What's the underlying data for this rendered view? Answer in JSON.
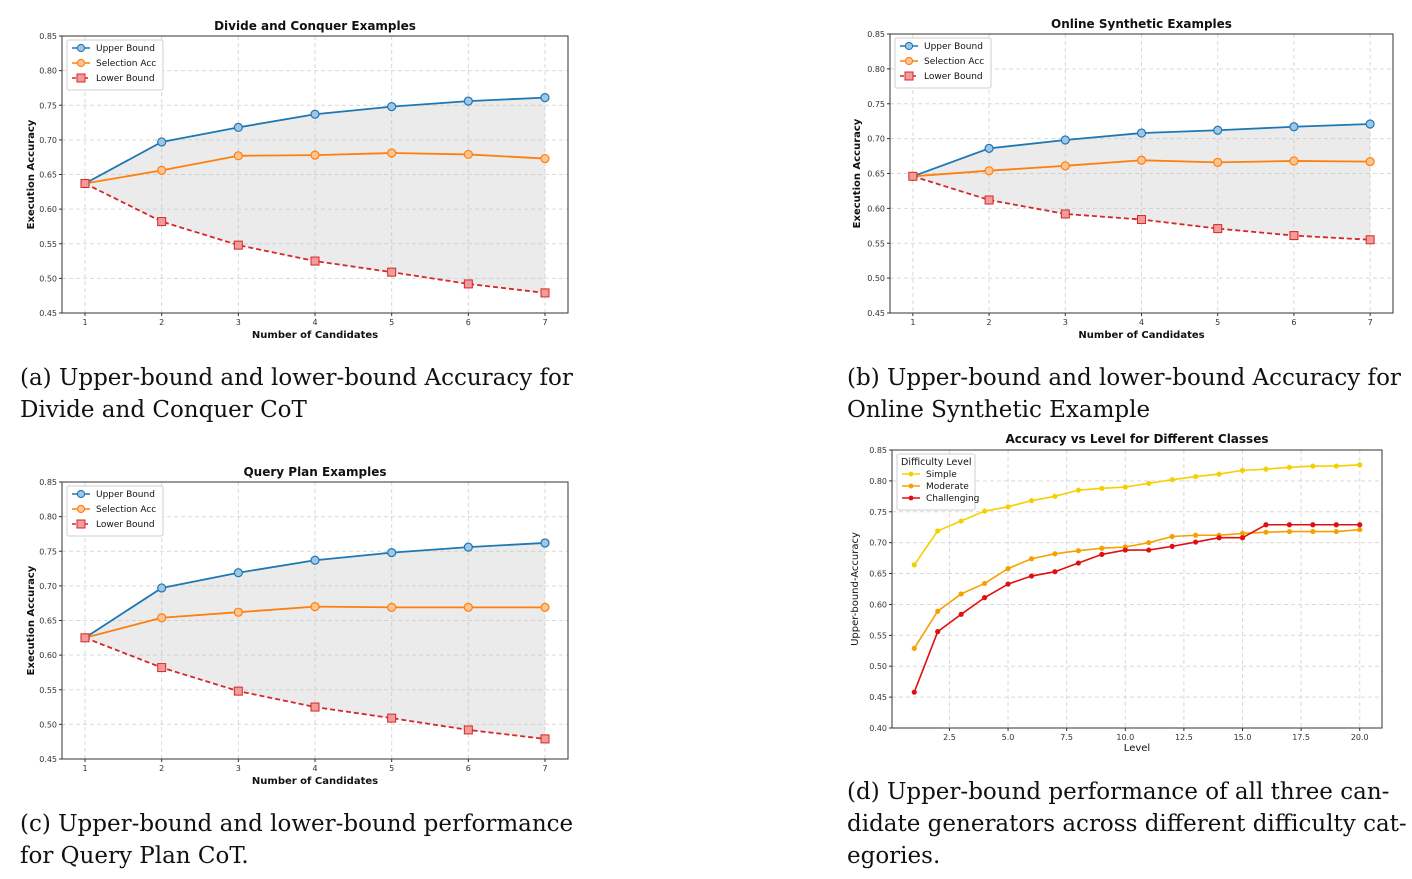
{
  "chart_data": [
    {
      "type": "line",
      "title": "Divide and Conquer Examples",
      "xlabel": "Number of Candidates",
      "ylabel": "Execution Accuracy",
      "x": [
        1,
        2,
        3,
        4,
        5,
        6,
        7
      ],
      "xlim": [
        0.7,
        7.3
      ],
      "ylim": [
        0.45,
        0.85
      ],
      "xticks": [
        1,
        2,
        3,
        4,
        5,
        6,
        7
      ],
      "yticks": [
        "0.45",
        "0.50",
        "0.55",
        "0.60",
        "0.65",
        "0.70",
        "0.75",
        "0.80",
        "0.85"
      ],
      "grid": true,
      "legend": "top-left",
      "shade_between": [
        "Upper Bound",
        "Lower Bound"
      ],
      "series": [
        {
          "name": "Upper Bound",
          "color": "#1f77b4",
          "marker": "circle",
          "dash": "solid",
          "values": [
            0.637,
            0.697,
            0.718,
            0.737,
            0.748,
            0.756,
            0.761
          ]
        },
        {
          "name": "Selection Acc",
          "color": "#ff7f0e",
          "marker": "circle",
          "dash": "solid",
          "values": [
            0.637,
            0.656,
            0.677,
            0.678,
            0.681,
            0.679,
            0.673
          ]
        },
        {
          "name": "Lower Bound",
          "color": "#d62728",
          "marker": "square",
          "dash": "dashed",
          "values": [
            0.637,
            0.582,
            0.548,
            0.525,
            0.509,
            0.492,
            0.479
          ]
        }
      ]
    },
    {
      "type": "line",
      "title": "Online Synthetic Examples",
      "xlabel": "Number of Candidates",
      "ylabel": "Execution Accuracy",
      "x": [
        1,
        2,
        3,
        4,
        5,
        6,
        7
      ],
      "xlim": [
        0.7,
        7.3
      ],
      "ylim": [
        0.45,
        0.85
      ],
      "xticks": [
        1,
        2,
        3,
        4,
        5,
        6,
        7
      ],
      "yticks": [
        "0.45",
        "0.50",
        "0.55",
        "0.60",
        "0.65",
        "0.70",
        "0.75",
        "0.80",
        "0.85"
      ],
      "grid": true,
      "legend": "top-left",
      "shade_between": [
        "Upper Bound",
        "Lower Bound"
      ],
      "series": [
        {
          "name": "Upper Bound",
          "color": "#1f77b4",
          "marker": "circle",
          "dash": "solid",
          "values": [
            0.646,
            0.686,
            0.698,
            0.708,
            0.712,
            0.717,
            0.721
          ]
        },
        {
          "name": "Selection Acc",
          "color": "#ff7f0e",
          "marker": "circle",
          "dash": "solid",
          "values": [
            0.646,
            0.654,
            0.661,
            0.669,
            0.666,
            0.668,
            0.667
          ]
        },
        {
          "name": "Lower Bound",
          "color": "#d62728",
          "marker": "square",
          "dash": "dashed",
          "values": [
            0.646,
            0.612,
            0.592,
            0.584,
            0.571,
            0.561,
            0.555
          ]
        }
      ]
    },
    {
      "type": "line",
      "title": "Query Plan Examples",
      "xlabel": "Number of Candidates",
      "ylabel": "Execution Accuracy",
      "x": [
        1,
        2,
        3,
        4,
        5,
        6,
        7
      ],
      "xlim": [
        0.7,
        7.3
      ],
      "ylim": [
        0.45,
        0.85
      ],
      "xticks": [
        1,
        2,
        3,
        4,
        5,
        6,
        7
      ],
      "yticks": [
        "0.45",
        "0.50",
        "0.55",
        "0.60",
        "0.65",
        "0.70",
        "0.75",
        "0.80",
        "0.85"
      ],
      "grid": true,
      "legend": "top-left",
      "shade_between": [
        "Upper Bound",
        "Lower Bound"
      ],
      "series": [
        {
          "name": "Upper Bound",
          "color": "#1f77b4",
          "marker": "circle",
          "dash": "solid",
          "values": [
            0.625,
            0.697,
            0.719,
            0.737,
            0.748,
            0.756,
            0.762
          ]
        },
        {
          "name": "Selection Acc",
          "color": "#ff7f0e",
          "marker": "circle",
          "dash": "solid",
          "values": [
            0.625,
            0.654,
            0.662,
            0.67,
            0.669,
            0.669,
            0.669
          ]
        },
        {
          "name": "Lower Bound",
          "color": "#d62728",
          "marker": "square",
          "dash": "dashed",
          "values": [
            0.625,
            0.582,
            0.548,
            0.525,
            0.509,
            0.492,
            0.479
          ]
        }
      ]
    },
    {
      "type": "line",
      "title": "Accuracy vs Level for Different Classes",
      "xlabel": "Level",
      "ylabel": "Upper-bound-Accuracy",
      "x": [
        1,
        2,
        3,
        4,
        5,
        6,
        7,
        8,
        9,
        10,
        11,
        12,
        13,
        14,
        15,
        16,
        17,
        18,
        19,
        20
      ],
      "xlim": [
        0.05,
        20.95
      ],
      "ylim": [
        0.4,
        0.85
      ],
      "xticks": [
        "2.5",
        "5.0",
        "7.5",
        "10.0",
        "12.5",
        "15.0",
        "17.5",
        "20.0"
      ],
      "yticks": [
        "0.40",
        "0.45",
        "0.50",
        "0.55",
        "0.60",
        "0.65",
        "0.70",
        "0.75",
        "0.80",
        "0.85"
      ],
      "grid": true,
      "legend": "top-left",
      "legend_title": "Difficulty Level",
      "series": [
        {
          "name": "Simple",
          "color": "#f5d000",
          "marker": "dot",
          "dash": "solid",
          "values": [
            0.664,
            0.719,
            0.735,
            0.751,
            0.758,
            0.768,
            0.775,
            0.785,
            0.788,
            0.79,
            0.796,
            0.802,
            0.807,
            0.811,
            0.817,
            0.819,
            0.822,
            0.824,
            0.824,
            0.826
          ]
        },
        {
          "name": "Moderate",
          "color": "#f5a200",
          "marker": "dot",
          "dash": "solid",
          "values": [
            0.529,
            0.589,
            0.617,
            0.634,
            0.658,
            0.674,
            0.682,
            0.687,
            0.691,
            0.693,
            0.7,
            0.71,
            0.712,
            0.712,
            0.715,
            0.717,
            0.718,
            0.718,
            0.718,
            0.721
          ]
        },
        {
          "name": "Challenging",
          "color": "#e01010",
          "marker": "dot",
          "dash": "solid",
          "values": [
            0.458,
            0.556,
            0.584,
            0.611,
            0.633,
            0.646,
            0.653,
            0.667,
            0.681,
            0.688,
            0.688,
            0.694,
            0.701,
            0.708,
            0.708,
            0.729,
            0.729,
            0.729,
            0.729,
            0.729
          ]
        }
      ]
    }
  ],
  "captions": {
    "a": [
      "(a) Upper-bound and lower-bound Accuracy for",
      "Divide and Conquer CoT"
    ],
    "b": [
      "(b) Upper-bound and lower-bound Accuracy for",
      "Online Synthetic Example"
    ],
    "c": [
      "(c) Upper-bound and lower-bound performance",
      "for Query Plan CoT."
    ],
    "d": [
      "(d) Upper-bound performance of all three can-",
      "didate generators across different difficulty cat-",
      "egories."
    ]
  }
}
